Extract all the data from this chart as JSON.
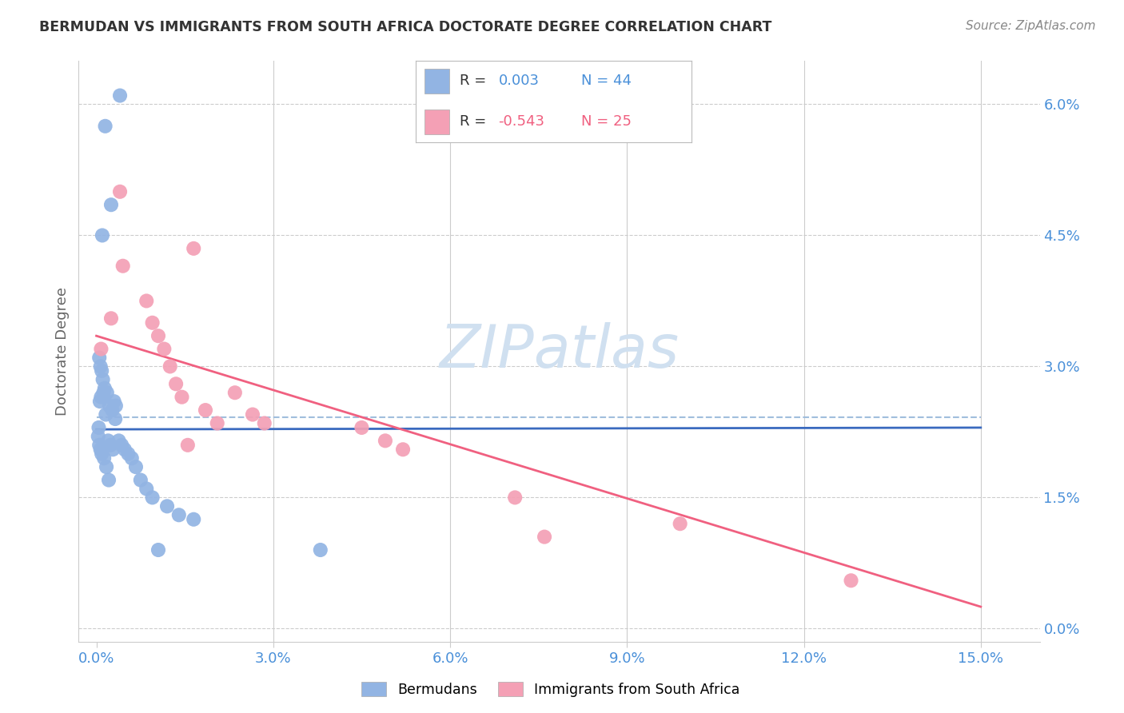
{
  "title": "BERMUDAN VS IMMIGRANTS FROM SOUTH AFRICA DOCTORATE DEGREE CORRELATION CHART",
  "source": "Source: ZipAtlas.com",
  "xlabel_ticks": [
    0.0,
    3.0,
    6.0,
    9.0,
    12.0,
    15.0
  ],
  "ylabel_ticks": [
    0.0,
    1.5,
    3.0,
    4.5,
    6.0
  ],
  "xlim": [
    -0.3,
    16.0
  ],
  "ylim": [
    -0.15,
    6.5
  ],
  "bermudans_color": "#92b4e3",
  "sa_color": "#f4a0b5",
  "trend_blue_color": "#3a6abf",
  "trend_pink_color": "#f06080",
  "dashed_line_color": "#a0bedd",
  "axis_tick_color": "#4a90d9",
  "ylabel_text": "Doctorate Degree",
  "title_color": "#333333",
  "source_color": "#888888",
  "watermark_color": "#d0e0f0",
  "legend_text_color": "#333333",
  "legend_r1_val_color": "#4a90d9",
  "legend_r2_val_color": "#f06080",
  "bermudans_x": [
    0.15,
    0.4,
    0.25,
    0.1,
    0.05,
    0.07,
    0.09,
    0.11,
    0.14,
    0.18,
    0.22,
    0.27,
    0.32,
    0.08,
    0.06,
    0.04,
    0.12,
    0.16,
    0.2,
    0.24,
    0.28,
    0.33,
    0.38,
    0.43,
    0.48,
    0.54,
    0.6,
    0.67,
    0.75,
    0.85,
    0.95,
    1.05,
    1.2,
    1.4,
    1.65,
    0.03,
    0.05,
    0.07,
    0.09,
    0.13,
    0.17,
    0.21,
    0.3,
    3.8
  ],
  "bermudans_y": [
    5.75,
    6.1,
    4.85,
    4.5,
    3.1,
    3.0,
    2.95,
    2.85,
    2.75,
    2.7,
    2.55,
    2.5,
    2.4,
    2.65,
    2.6,
    2.3,
    2.7,
    2.45,
    2.15,
    2.1,
    2.05,
    2.55,
    2.15,
    2.1,
    2.05,
    2.0,
    1.95,
    1.85,
    1.7,
    1.6,
    1.5,
    0.9,
    1.4,
    1.3,
    1.25,
    2.2,
    2.1,
    2.05,
    2.0,
    1.95,
    1.85,
    1.7,
    2.6,
    0.9
  ],
  "sa_x": [
    0.08,
    0.25,
    0.4,
    0.45,
    0.85,
    0.95,
    1.05,
    1.15,
    1.25,
    1.35,
    1.45,
    1.55,
    1.65,
    1.85,
    2.05,
    2.35,
    2.65,
    2.85,
    4.5,
    4.9,
    5.2,
    7.1,
    7.6,
    9.9,
    12.8
  ],
  "sa_y": [
    3.2,
    3.55,
    5.0,
    4.15,
    3.75,
    3.5,
    3.35,
    3.2,
    3.0,
    2.8,
    2.65,
    2.1,
    4.35,
    2.5,
    2.35,
    2.7,
    2.45,
    2.35,
    2.3,
    2.15,
    2.05,
    1.5,
    1.05,
    1.2,
    0.55
  ],
  "bermudans_trend_x": [
    0.0,
    15.0
  ],
  "bermudans_trend_y": [
    2.28,
    2.3
  ],
  "sa_trend_x": [
    0.0,
    15.0
  ],
  "sa_trend_y": [
    3.35,
    0.25
  ],
  "dashed_line_y": 2.42,
  "dashed_line_xmin": 0.0,
  "dashed_line_xmax": 15.0,
  "grid_line_color": "#cccccc",
  "spine_color": "#cccccc"
}
